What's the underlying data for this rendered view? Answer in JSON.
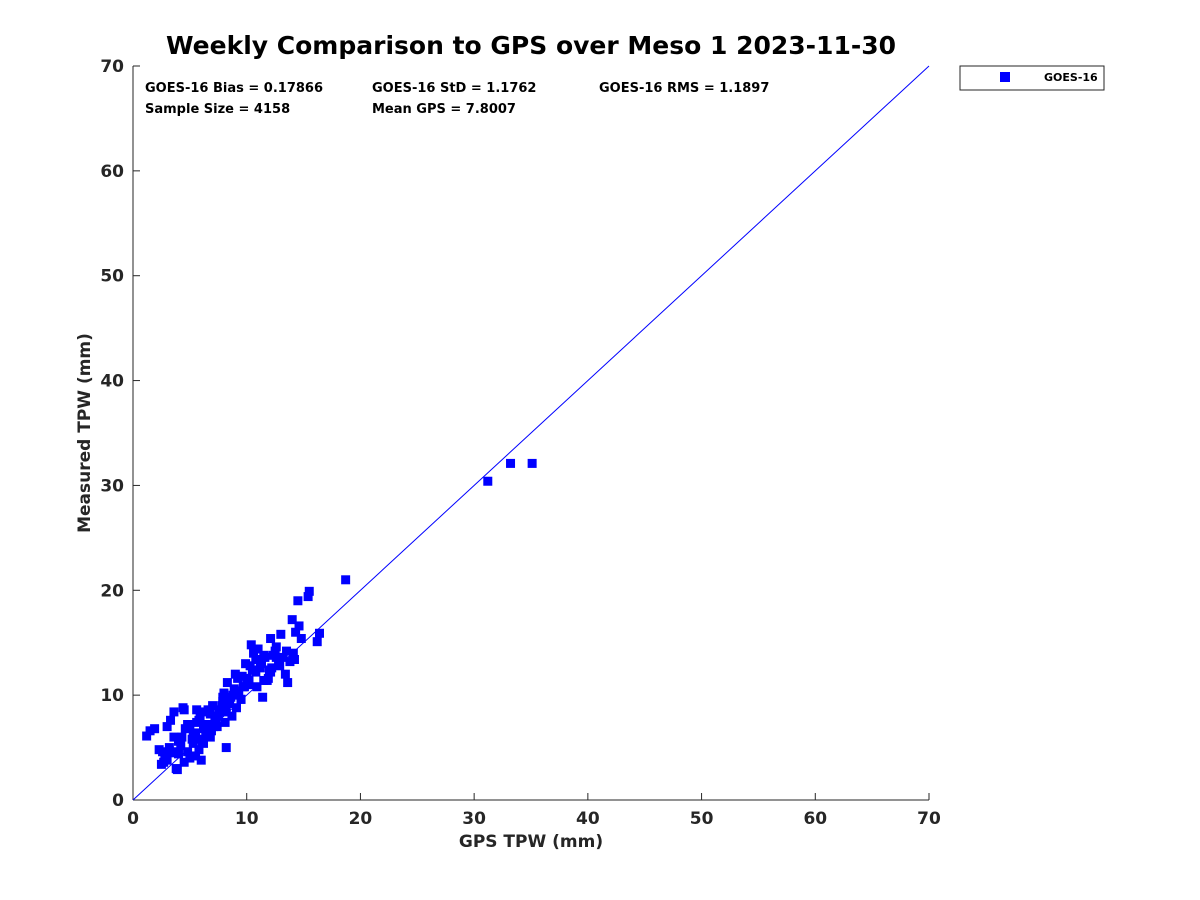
{
  "chart_data": {
    "type": "scatter",
    "title": "Weekly Comparison to GPS over Meso 1 2023-11-30",
    "xlabel": "GPS TPW (mm)",
    "ylabel": "Measured TPW (mm)",
    "xlim": [
      0,
      70
    ],
    "ylim": [
      0,
      70
    ],
    "xticks": [
      "0",
      "10",
      "20",
      "30",
      "40",
      "50",
      "60",
      "70"
    ],
    "yticks": [
      "0",
      "10",
      "20",
      "30",
      "40",
      "50",
      "60",
      "70"
    ],
    "grid": false,
    "legend_position": "outside-top-right",
    "stats": {
      "bias": "GOES-16 Bias = 0.17866",
      "std": "GOES-16 StD = 1.1762",
      "rms": "GOES-16 RMS = 1.1897",
      "sample_size": "Sample Size = 4158",
      "mean_gps": "Mean GPS = 7.8007"
    },
    "reference_line": {
      "name": "1:1",
      "x": [
        0,
        70
      ],
      "y": [
        0,
        70
      ],
      "color": "#0000ff"
    },
    "series": [
      {
        "name": "GOES-16",
        "color": "#0000ff",
        "marker": "square",
        "x": [
          1.2,
          1.5,
          1.9,
          2.3,
          2.6,
          3.0,
          3.3,
          3.6,
          3.4,
          4.4,
          4.5,
          2.5,
          2.8,
          3.0,
          3.2,
          3.5,
          3.8,
          4.0,
          4.2,
          4.5,
          4.8,
          5.0,
          5.3,
          5.5,
          5.8,
          6.0,
          4.0,
          4.3,
          4.6,
          4.9,
          5.2,
          5.5,
          5.8,
          6.1,
          6.4,
          5.0,
          5.3,
          5.6,
          5.9,
          6.2,
          6.5,
          6.8,
          7.1,
          6.0,
          6.3,
          6.6,
          6.9,
          7.2,
          7.5,
          7.8,
          8.1,
          7.0,
          7.3,
          7.6,
          7.9,
          8.2,
          8.5,
          8.8,
          9.1,
          8.0,
          8.3,
          8.6,
          8.9,
          9.2,
          9.5,
          9.8,
          9.0,
          9.3,
          9.6,
          9.9,
          10.2,
          10.5,
          10.8,
          10.0,
          10.3,
          10.6,
          10.9,
          11.2,
          11.5,
          11.8,
          12.1,
          11.0,
          11.3,
          11.6,
          11.9,
          12.2,
          12.5,
          12.8,
          12.0,
          12.3,
          12.6,
          12.9,
          13.2,
          13.5,
          13.8,
          14.1,
          11.5,
          13.0,
          14.3,
          14.6,
          14.8,
          14.5,
          14.0,
          15.5,
          15.4,
          16.2,
          16.4,
          18.7,
          31.2,
          33.2,
          35.1,
          3.6,
          4.8,
          6.2,
          7.4,
          8.7,
          9.5,
          10.2,
          10.8,
          11.4,
          12.6,
          13.4,
          14.2,
          5.6,
          6.8,
          7.9,
          9.1,
          10.4,
          2.7,
          3.9,
          8.2,
          9.7,
          12.1,
          13.6
        ],
        "y": [
          6.1,
          6.6,
          6.8,
          4.8,
          4.6,
          7.0,
          7.6,
          8.4,
          4.5,
          8.8,
          8.6,
          3.4,
          4.2,
          3.8,
          5.0,
          4.6,
          3.0,
          4.4,
          5.2,
          3.6,
          4.6,
          4.0,
          5.4,
          4.2,
          4.8,
          3.8,
          5.6,
          6.0,
          6.8,
          7.2,
          5.8,
          6.4,
          7.6,
          5.6,
          6.2,
          7.0,
          6.2,
          7.4,
          8.0,
          6.8,
          7.2,
          8.2,
          7.0,
          5.8,
          8.4,
          8.6,
          6.6,
          7.6,
          8.0,
          9.0,
          7.4,
          9.0,
          7.8,
          8.6,
          9.4,
          8.4,
          9.2,
          10.0,
          8.8,
          10.2,
          11.2,
          9.8,
          10.6,
          11.6,
          9.6,
          10.8,
          12.0,
          10.4,
          11.8,
          13.0,
          11.0,
          12.4,
          13.4,
          11.6,
          12.8,
          14.0,
          10.8,
          12.6,
          13.8,
          11.4,
          12.2,
          14.4,
          13.0,
          13.6,
          11.6,
          12.6,
          14.2,
          13.2,
          12.4,
          13.8,
          14.6,
          12.8,
          13.6,
          14.2,
          13.2,
          14.0,
          11.4,
          15.8,
          16.0,
          16.6,
          15.4,
          19.0,
          17.2,
          19.9,
          19.4,
          15.1,
          15.9,
          21.0,
          30.4,
          32.1,
          32.1,
          6.0,
          7.2,
          5.4,
          7.0,
          8.0,
          9.6,
          11.4,
          12.2,
          9.8,
          13.6,
          12.0,
          13.4,
          8.6,
          6.0,
          9.8,
          10.4,
          14.8,
          3.6,
          2.9,
          5.0,
          10.8,
          15.4,
          11.2
        ]
      }
    ]
  }
}
